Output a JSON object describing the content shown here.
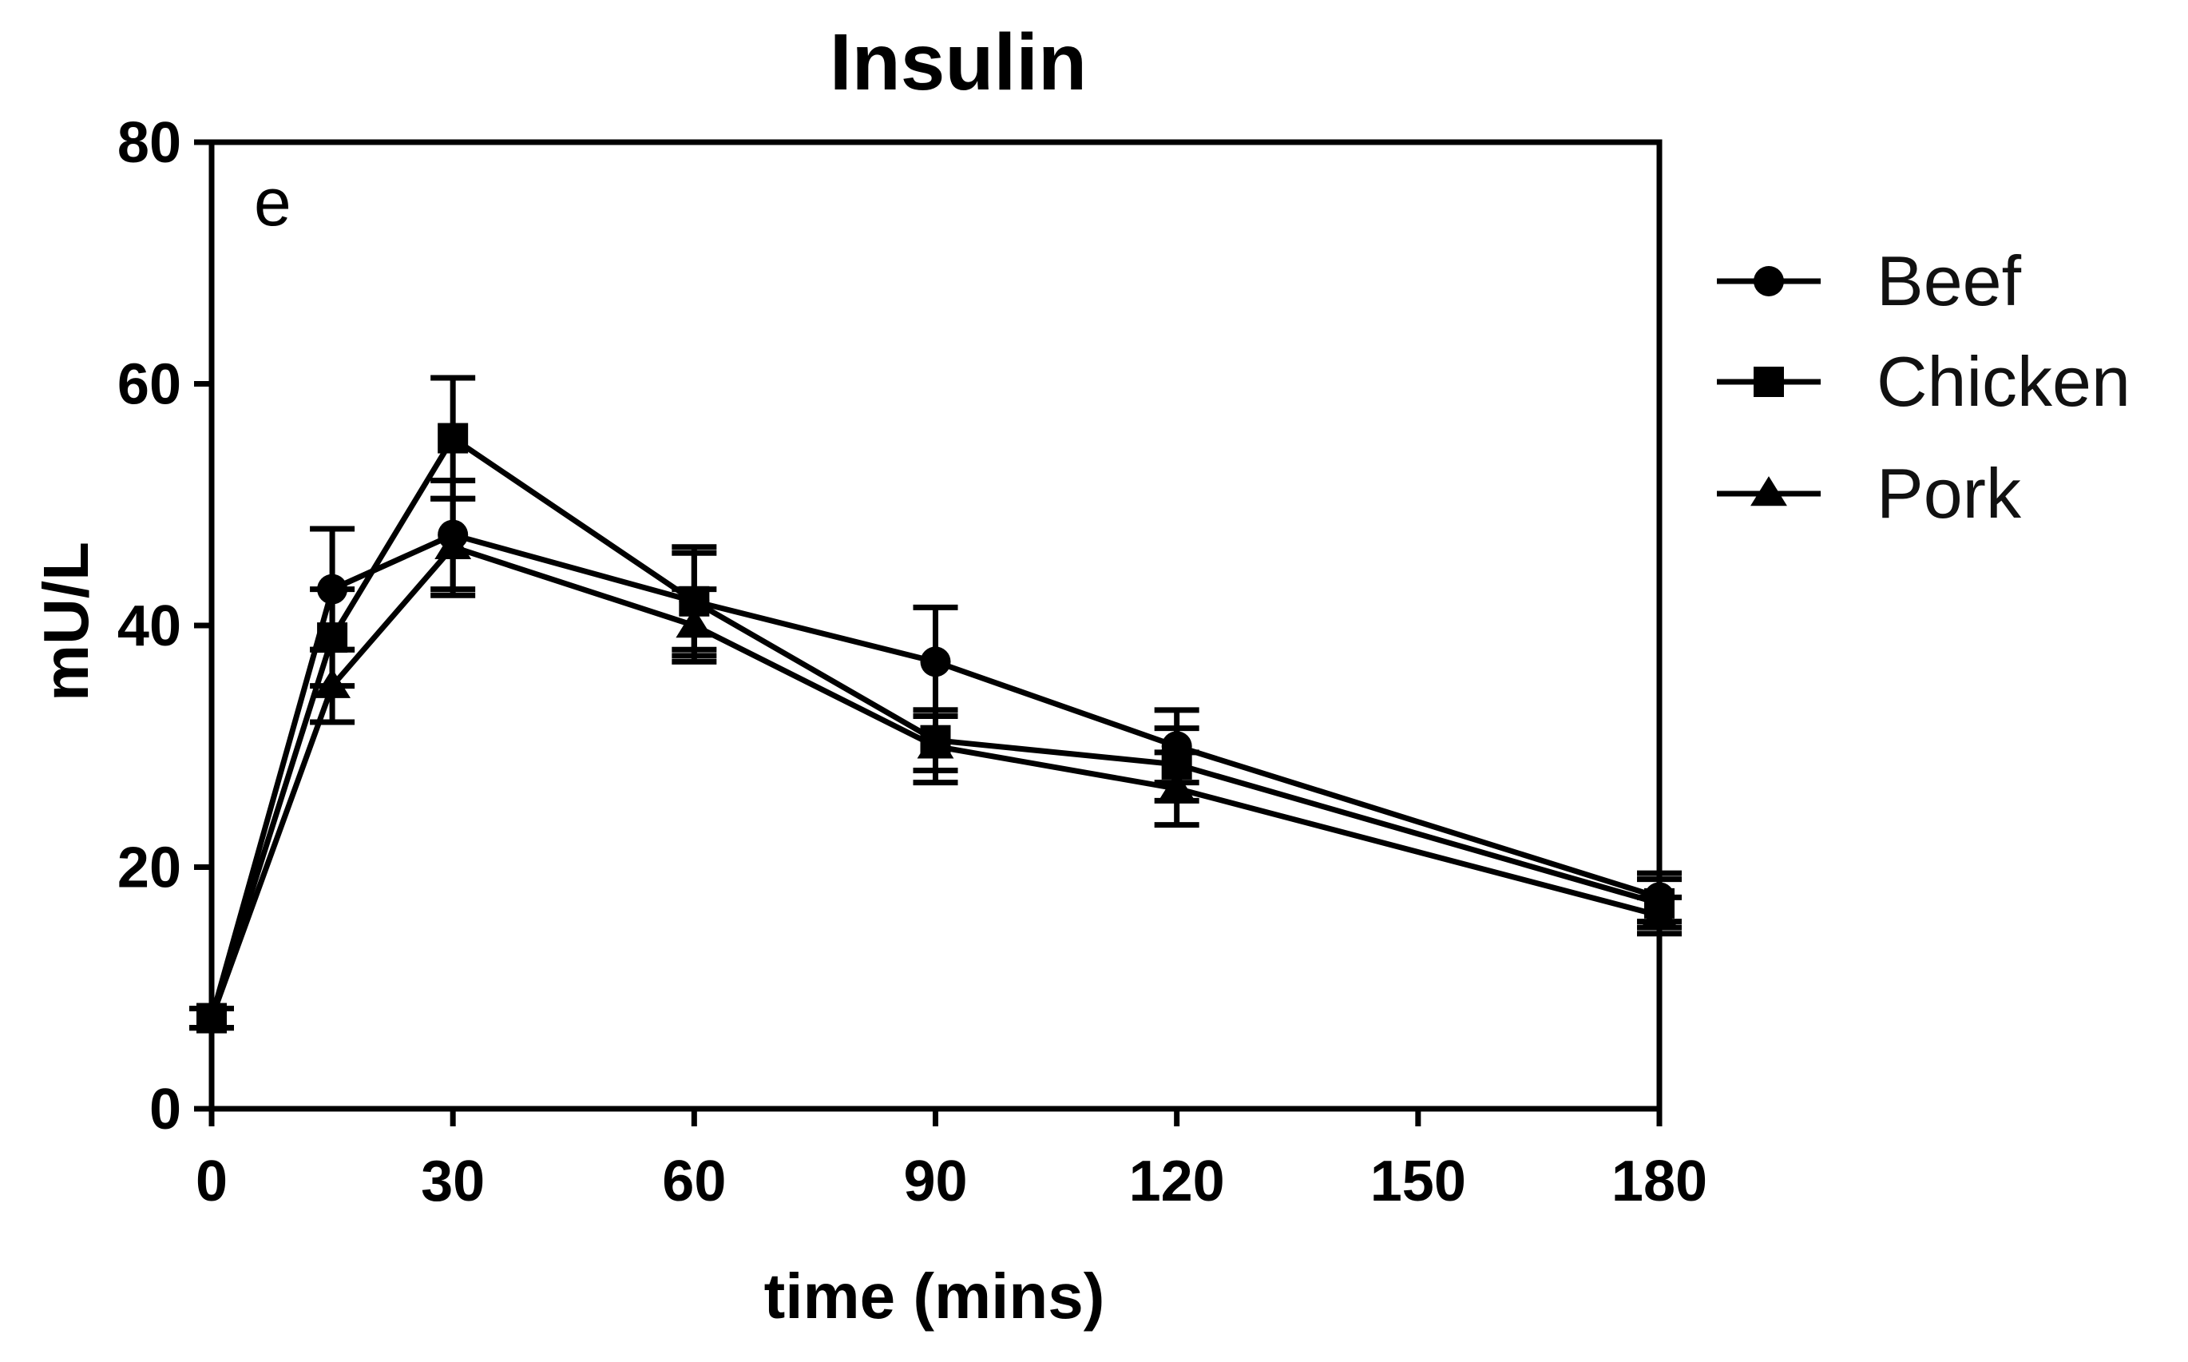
{
  "chart_data": {
    "type": "line",
    "title": "Insulin",
    "panel_label": "e",
    "xlabel": "time (mins)",
    "ylabel": "mU/L",
    "xlim": [
      0,
      180
    ],
    "ylim": [
      0,
      80
    ],
    "xticks": [
      0,
      30,
      60,
      90,
      120,
      150,
      180
    ],
    "yticks": [
      0,
      20,
      40,
      60,
      80
    ],
    "grid": false,
    "legend_position": "right",
    "color": "#000000",
    "x": [
      0,
      15,
      30,
      60,
      90,
      120,
      180
    ],
    "series": [
      {
        "name": "Beef",
        "marker": "circle",
        "values": [
          7.5,
          43,
          47.5,
          42,
          37,
          30,
          17.5
        ],
        "errors": [
          0.8,
          5,
          4.5,
          4.5,
          4.5,
          3,
          2
        ]
      },
      {
        "name": "Chicken",
        "marker": "square",
        "values": [
          7.5,
          39,
          55.5,
          42,
          30.5,
          28.5,
          17
        ],
        "errors": [
          0.8,
          4,
          5,
          4,
          2.5,
          3,
          2
        ]
      },
      {
        "name": "Pork",
        "marker": "triangle",
        "values": [
          7.5,
          35,
          46.5,
          40,
          30,
          26.5,
          16
        ],
        "errors": [
          0.8,
          3,
          4,
          3,
          3,
          3,
          1.5
        ]
      }
    ]
  }
}
